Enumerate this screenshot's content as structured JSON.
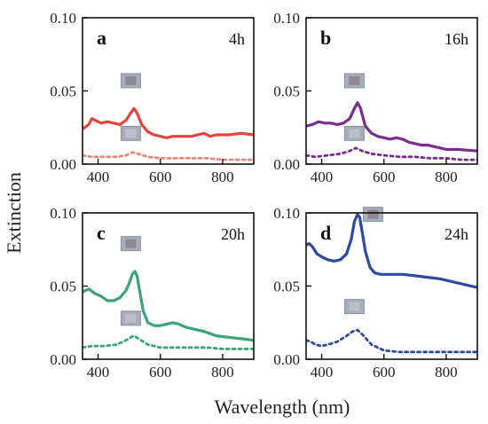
{
  "figure": {
    "xlabel": "Wavelength (nm)",
    "ylabel": "Extinction"
  },
  "chart_data": [
    {
      "type": "line",
      "panel": "a",
      "time": "4h",
      "xlim": [
        350,
        900
      ],
      "ylim": [
        0,
        0.1
      ],
      "xticks": [
        400,
        600,
        800
      ],
      "yticks": [
        0,
        0.05,
        0.1
      ],
      "ytick_labels": [
        "0.00",
        "0.05",
        "0.10"
      ],
      "series": [
        {
          "style": "solid",
          "color": "#e8433a",
          "x": [
            350,
            370,
            380,
            390,
            410,
            430,
            450,
            470,
            490,
            505,
            515,
            525,
            540,
            560,
            580,
            600,
            620,
            640,
            660,
            700,
            720,
            740,
            760,
            780,
            820,
            860,
            900
          ],
          "y": [
            0.024,
            0.027,
            0.031,
            0.03,
            0.028,
            0.029,
            0.028,
            0.027,
            0.03,
            0.035,
            0.038,
            0.035,
            0.027,
            0.022,
            0.02,
            0.019,
            0.018,
            0.019,
            0.019,
            0.019,
            0.02,
            0.021,
            0.019,
            0.02,
            0.02,
            0.021,
            0.02
          ]
        },
        {
          "style": "dotted",
          "color": "#ec8580",
          "x": [
            350,
            380,
            420,
            460,
            490,
            510,
            530,
            560,
            600,
            650,
            700,
            750,
            800,
            850,
            900
          ],
          "y": [
            0.006,
            0.005,
            0.005,
            0.005,
            0.006,
            0.008,
            0.007,
            0.005,
            0.004,
            0.004,
            0.004,
            0.004,
            0.003,
            0.003,
            0.003
          ]
        }
      ]
    },
    {
      "type": "line",
      "panel": "b",
      "time": "16h",
      "xlim": [
        350,
        900
      ],
      "ylim": [
        0,
        0.1
      ],
      "xticks": [
        400,
        600,
        800
      ],
      "yticks": [
        0,
        0.05,
        0.1
      ],
      "ytick_labels": [
        "0.00",
        "0.05",
        "0.10"
      ],
      "series": [
        {
          "style": "solid",
          "color": "#7b2d8e",
          "x": [
            350,
            370,
            390,
            410,
            430,
            450,
            470,
            490,
            505,
            515,
            525,
            540,
            560,
            580,
            600,
            620,
            640,
            660,
            680,
            700,
            720,
            740,
            760,
            780,
            800,
            840,
            900
          ],
          "y": [
            0.026,
            0.027,
            0.029,
            0.028,
            0.028,
            0.027,
            0.028,
            0.031,
            0.038,
            0.042,
            0.038,
            0.026,
            0.021,
            0.019,
            0.018,
            0.017,
            0.018,
            0.017,
            0.015,
            0.014,
            0.013,
            0.013,
            0.012,
            0.011,
            0.01,
            0.01,
            0.009
          ]
        },
        {
          "style": "dotted",
          "color": "#7b2d8e",
          "x": [
            350,
            380,
            420,
            460,
            490,
            510,
            530,
            560,
            600,
            650,
            700,
            750,
            800,
            850,
            900
          ],
          "y": [
            0.006,
            0.005,
            0.006,
            0.007,
            0.009,
            0.011,
            0.009,
            0.007,
            0.006,
            0.005,
            0.005,
            0.004,
            0.004,
            0.003,
            0.003
          ]
        }
      ]
    },
    {
      "type": "line",
      "panel": "c",
      "time": "20h",
      "xlim": [
        350,
        900
      ],
      "ylim": [
        0,
        0.1
      ],
      "xticks": [
        400,
        600,
        800
      ],
      "yticks": [
        0,
        0.05,
        0.1
      ],
      "ytick_labels": [
        "0.00",
        "0.05",
        "0.10"
      ],
      "series": [
        {
          "style": "solid",
          "color": "#3aa377",
          "x": [
            350,
            370,
            390,
            410,
            430,
            450,
            470,
            490,
            500,
            510,
            518,
            525,
            535,
            545,
            560,
            580,
            600,
            620,
            640,
            660,
            680,
            700,
            740,
            780,
            820,
            860,
            900
          ],
          "y": [
            0.046,
            0.048,
            0.045,
            0.043,
            0.04,
            0.04,
            0.042,
            0.047,
            0.052,
            0.058,
            0.06,
            0.057,
            0.045,
            0.033,
            0.025,
            0.023,
            0.023,
            0.024,
            0.025,
            0.024,
            0.022,
            0.021,
            0.019,
            0.016,
            0.015,
            0.014,
            0.013
          ]
        },
        {
          "style": "dotted",
          "color": "#3aa377",
          "x": [
            350,
            380,
            420,
            460,
            490,
            505,
            515,
            530,
            560,
            600,
            650,
            700,
            750,
            800,
            850,
            900
          ],
          "y": [
            0.008,
            0.009,
            0.009,
            0.01,
            0.013,
            0.015,
            0.016,
            0.014,
            0.01,
            0.008,
            0.008,
            0.008,
            0.008,
            0.007,
            0.007,
            0.007
          ]
        }
      ]
    },
    {
      "type": "line",
      "panel": "d",
      "time": "24h",
      "xlim": [
        350,
        900
      ],
      "ylim": [
        0,
        0.1
      ],
      "xticks": [
        400,
        600,
        800
      ],
      "yticks": [
        0,
        0.05,
        0.1
      ],
      "ytick_labels": [
        "0.00",
        "0.05",
        "0.10"
      ],
      "series": [
        {
          "style": "solid",
          "color": "#2b4aa0",
          "x": [
            350,
            360,
            370,
            385,
            400,
            420,
            440,
            460,
            480,
            495,
            505,
            515,
            522,
            530,
            540,
            555,
            570,
            590,
            610,
            630,
            660,
            700,
            740,
            780,
            820,
            860,
            900
          ],
          "y": [
            0.078,
            0.079,
            0.077,
            0.072,
            0.07,
            0.068,
            0.067,
            0.068,
            0.072,
            0.082,
            0.094,
            0.099,
            0.097,
            0.087,
            0.074,
            0.063,
            0.059,
            0.058,
            0.058,
            0.058,
            0.058,
            0.057,
            0.056,
            0.055,
            0.053,
            0.051,
            0.049
          ]
        },
        {
          "style": "dotted",
          "color": "#2b4aa0",
          "x": [
            350,
            365,
            380,
            400,
            420,
            450,
            480,
            500,
            515,
            530,
            560,
            600,
            650,
            700,
            750,
            800,
            850,
            900
          ],
          "y": [
            0.013,
            0.012,
            0.01,
            0.009,
            0.01,
            0.012,
            0.016,
            0.019,
            0.02,
            0.017,
            0.01,
            0.006,
            0.005,
            0.005,
            0.005,
            0.005,
            0.005,
            0.005
          ]
        }
      ]
    }
  ]
}
